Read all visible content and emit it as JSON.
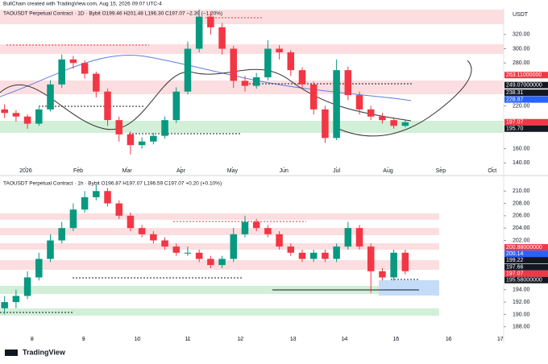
{
  "header": "BullChain created with TradingView.com, Aug 15, 2026 09:07 UTC-4",
  "footer": "TradingView",
  "chart_data": [
    {
      "type": "candlestick",
      "title": "TAOUSDT Perpetual Contract · 1D · Bybit  O199.46 H201.48 L196.30 C197.07 −2.39 (−1.20%)",
      "unit": "USDT",
      "x": [
        0.4,
        1.4,
        2.4,
        3.4,
        4.4,
        5.4,
        6.4,
        7.4,
        8.4,
        9.4,
        10.4,
        11.4,
        12.4,
        13.4,
        14.4,
        15.4,
        16.4,
        17.4,
        18.4,
        19.4,
        20.4,
        21.4,
        22.4,
        23.4,
        24.4,
        25.4,
        26.4,
        27.4,
        28.4,
        29.4,
        30.4,
        31.4,
        32.4,
        33.4,
        34.4,
        35.4
      ],
      "open": [
        215,
        210,
        205,
        195,
        215,
        250,
        285,
        280,
        265,
        240,
        200,
        180,
        165,
        170,
        178,
        200,
        240,
        300,
        345,
        330,
        300,
        255,
        248,
        260,
        300,
        295,
        270,
        250,
        215,
        175,
        270,
        235,
        215,
        205,
        200,
        192
      ],
      "high": [
        222,
        214,
        208,
        218,
        256,
        292,
        290,
        284,
        268,
        244,
        205,
        184,
        176,
        182,
        205,
        246,
        310,
        355,
        352,
        336,
        304,
        262,
        266,
        312,
        305,
        298,
        274,
        254,
        220,
        285,
        275,
        240,
        220,
        210,
        204,
        201
      ],
      "low": [
        203,
        198,
        188,
        192,
        212,
        245,
        272,
        258,
        232,
        192,
        170,
        152,
        160,
        166,
        174,
        196,
        236,
        295,
        320,
        292,
        245,
        240,
        244,
        256,
        285,
        262,
        244,
        208,
        168,
        172,
        228,
        208,
        200,
        195,
        188,
        190
      ],
      "close": [
        210,
        205,
        195,
        215,
        250,
        285,
        280,
        265,
        240,
        200,
        180,
        165,
        170,
        178,
        200,
        240,
        300,
        345,
        330,
        300,
        255,
        248,
        260,
        300,
        295,
        270,
        250,
        215,
        175,
        270,
        235,
        215,
        205,
        200,
        192,
        197
      ],
      "up_color": "#089981",
      "down_color": "#f23645",
      "xlim": [
        0,
        44
      ],
      "xticks": [
        {
          "value": 2.25,
          "label": "2026"
        },
        {
          "value": 6.83,
          "label": "Feb"
        },
        {
          "value": 11.1,
          "label": "Mar"
        },
        {
          "value": 15.8,
          "label": "Apr"
        },
        {
          "value": 20.3,
          "label": "May"
        },
        {
          "value": 24.8,
          "label": "Jun"
        },
        {
          "value": 29.4,
          "label": "Jul"
        },
        {
          "value": 33.9,
          "label": "Aug"
        },
        {
          "value": 38.5,
          "label": "Sep"
        },
        {
          "value": 43,
          "label": "Oct"
        }
      ],
      "ylim": [
        137,
        357
      ],
      "yticks": [
        {
          "value": 140,
          "label": "140.00"
        },
        {
          "value": 160,
          "label": "160.00"
        },
        {
          "value": 220,
          "label": "220.00"
        },
        {
          "value": 280,
          "label": "280.00"
        },
        {
          "value": 300,
          "label": "300.00"
        },
        {
          "value": 320,
          "label": "320.00"
        }
      ],
      "price_labels": [
        {
          "value": 263.11,
          "label": "263.11000000",
          "color": "#f23645"
        },
        {
          "value": 249.07,
          "label": "249.07000000",
          "color": "#131722"
        },
        {
          "value": 238.31,
          "label": "238.31",
          "color": "#131722"
        },
        {
          "value": 228.87,
          "label": "228.87",
          "color": "#2962ff"
        },
        {
          "value": 197.07,
          "label": "197.07",
          "color": "#f23645"
        },
        {
          "value": 195.7,
          "label": "195.70",
          "color": "#131722"
        }
      ]
    },
    {
      "type": "candlestick",
      "title": "TAOUSDT Perpetual Contract · 1h · Bybit  O196.87 H197.07 L196.59 C197.07 +0.20 (+0.10%)",
      "x": [
        0.4,
        1.4,
        2.4,
        3.4,
        4.4,
        5.4,
        6.4,
        7.4,
        8.4,
        9.4,
        10.4,
        11.4,
        12.4,
        13.4,
        14.4,
        15.4,
        16.4,
        17.4,
        18.4,
        19.4,
        20.4,
        21.4,
        22.4,
        23.4,
        24.4,
        25.4,
        26.4,
        27.4,
        28.4,
        29.4,
        30.4,
        31.4,
        32.4,
        33.4,
        34.4,
        35.4
      ],
      "open": [
        191,
        192,
        193,
        196,
        199,
        202,
        204,
        207,
        209,
        210,
        208,
        206,
        204,
        203,
        202,
        201,
        200,
        200,
        199,
        198,
        199,
        203,
        205,
        204,
        203,
        201,
        200,
        199,
        200,
        199,
        201,
        204,
        201,
        197,
        196,
        200
      ],
      "high": [
        193,
        194,
        197,
        200,
        203,
        205,
        208,
        210,
        211,
        210.5,
        208.5,
        206.5,
        204.5,
        203.5,
        202.5,
        201.5,
        201,
        200.5,
        199.5,
        199.5,
        204,
        206,
        205.5,
        204.5,
        203.5,
        201.5,
        200.5,
        200.5,
        200.5,
        201.5,
        205,
        204.5,
        201.5,
        197.5,
        200.5,
        200.5
      ],
      "low": [
        190,
        191,
        192.5,
        195.5,
        198.5,
        201.5,
        203.5,
        206.5,
        208.5,
        207.5,
        205.5,
        203.5,
        202.5,
        201.5,
        200.5,
        199.5,
        199.5,
        198.5,
        197.5,
        197.5,
        198.5,
        202.5,
        203.5,
        202.5,
        200.5,
        199.5,
        198.5,
        198.5,
        198.5,
        198.5,
        200.5,
        200.5,
        193.5,
        195.5,
        195.5,
        196.5
      ],
      "close": [
        192,
        193,
        196,
        199,
        202,
        204,
        207,
        209,
        210,
        208,
        206,
        204,
        203,
        202,
        201,
        200,
        200,
        199,
        198,
        199,
        203,
        205,
        204,
        203,
        201,
        200,
        199,
        200,
        199,
        201,
        204,
        201,
        197,
        196,
        200,
        197
      ],
      "up_color": "#089981",
      "down_color": "#f23645",
      "xlim": [
        0,
        44
      ],
      "xticks": [
        {
          "value": 2.8,
          "label": "8"
        },
        {
          "value": 7.3,
          "label": "9"
        },
        {
          "value": 12,
          "label": "10"
        },
        {
          "value": 16.4,
          "label": "11"
        },
        {
          "value": 21,
          "label": "12"
        },
        {
          "value": 25.6,
          "label": "13"
        },
        {
          "value": 30.1,
          "label": "14"
        },
        {
          "value": 34.6,
          "label": "15"
        },
        {
          "value": 39.2,
          "label": "16"
        },
        {
          "value": 43.7,
          "label": "17"
        }
      ],
      "ylim": [
        186.4,
        211.6
      ],
      "yticks": [
        {
          "value": 188,
          "label": "188.00"
        },
        {
          "value": 190,
          "label": "190.00"
        },
        {
          "value": 192,
          "label": "192.00"
        },
        {
          "value": 194,
          "label": "194.00"
        },
        {
          "value": 202,
          "label": "202.00"
        },
        {
          "value": 204,
          "label": "204.00"
        },
        {
          "value": 206,
          "label": "206.00"
        },
        {
          "value": 208,
          "label": "208.00"
        },
        {
          "value": 210,
          "label": "210.00"
        }
      ],
      "price_labels": [
        {
          "value": 200.88,
          "label": "200.88000000",
          "color": "#f23645"
        },
        {
          "value": 200.14,
          "label": "200.14",
          "color": "#2962ff"
        },
        {
          "value": 199.22,
          "label": "199.22",
          "color": "#131722"
        },
        {
          "value": 197.66,
          "label": "197.66",
          "color": "#131722"
        },
        {
          "value": 197.07,
          "label": "197.07",
          "color": "#f23645"
        },
        {
          "value": 195.58,
          "label": "195.58000000",
          "color": "#131722"
        }
      ]
    }
  ]
}
